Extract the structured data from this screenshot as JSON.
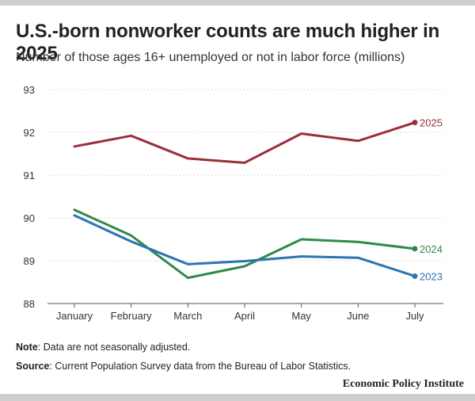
{
  "title": "U.S.-born nonworker counts are much higher in 2025",
  "subtitle": "Number of those ages 16+ unemployed or not in labor force (millions)",
  "note_label": "Note",
  "note_text": ": Data are not seasonally adjusted.",
  "source_label": "Source",
  "source_text": ": Current Population Survey data from the Bureau of Labor Statistics.",
  "brand": "Economic Policy Institute",
  "colors": {
    "2025": "#9b2f3b",
    "2024": "#2e8b47",
    "2023": "#2b74b2",
    "grid": "#cccccc",
    "axis": "#555555"
  },
  "chart_data": {
    "type": "line",
    "title": "U.S.-born nonworker counts are much higher in 2025",
    "subtitle": "Number of those ages 16+ unemployed or not in labor force (millions)",
    "categories": [
      "January",
      "February",
      "March",
      "April",
      "May",
      "June",
      "July"
    ],
    "ylim": [
      88,
      93
    ],
    "yticks": [
      88,
      89,
      90,
      91,
      92,
      93
    ],
    "grid": "horizontal dotted",
    "legend": "direct labels at line ends",
    "series": [
      {
        "name": "2025",
        "color": "#9b2f3b",
        "values": [
          91.67,
          91.92,
          91.39,
          91.29,
          91.97,
          91.8,
          92.23
        ]
      },
      {
        "name": "2024",
        "color": "#2e8b47",
        "values": [
          90.19,
          89.59,
          88.6,
          88.87,
          89.5,
          89.44,
          89.28
        ]
      },
      {
        "name": "2023",
        "color": "#2b74b2",
        "values": [
          90.06,
          89.45,
          88.92,
          88.99,
          89.1,
          89.07,
          88.64
        ]
      }
    ]
  }
}
